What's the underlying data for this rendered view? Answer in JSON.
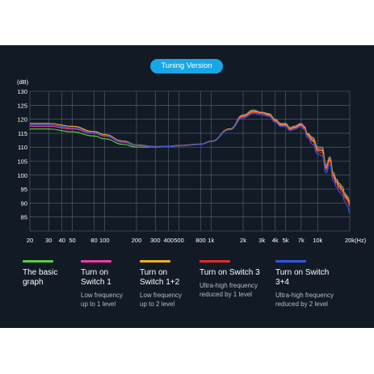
{
  "badge": "Tuning Version",
  "colors": {
    "background": "#121a26",
    "badge": "#1aa6e6",
    "grid": "#5c6675",
    "text": "#ffffff",
    "muted": "#b4bcc8"
  },
  "chart_data": {
    "type": "line",
    "title": "",
    "ylabel": "(dB)",
    "xlabel": "(Hz)",
    "x_scale": "log",
    "xlim": [
      20,
      20000
    ],
    "ylim": [
      80,
      130
    ],
    "grid": true,
    "x_ticks": [
      20,
      30,
      40,
      50,
      80,
      100,
      200,
      300,
      400,
      500,
      800,
      1000,
      2000,
      3000,
      4000,
      5000,
      7000,
      10000,
      20000
    ],
    "x_tick_labels": [
      "20",
      "30",
      "40",
      "50",
      "80",
      "100",
      "200",
      "300",
      "400",
      "500",
      "800",
      "1k",
      "2k",
      "3k",
      "4k",
      "5k",
      "7k",
      "10k",
      "20k"
    ],
    "y_ticks": [
      85,
      90,
      95,
      100,
      105,
      110,
      115,
      120,
      125,
      130
    ],
    "x": [
      20,
      30,
      50,
      80,
      100,
      150,
      200,
      300,
      400,
      500,
      800,
      1000,
      1500,
      2000,
      2500,
      3000,
      3500,
      4000,
      4500,
      5000,
      5500,
      6000,
      7000,
      7500,
      8000,
      9000,
      10000,
      11000,
      12000,
      13000,
      14000,
      15000,
      16000,
      17000,
      18000,
      19000,
      20000
    ],
    "series": [
      {
        "name": "The basic graph",
        "color": "#55d13b",
        "values": [
          116.5,
          116.5,
          115.5,
          114.0,
          113.0,
          111.0,
          110.0,
          110.0,
          110.2,
          110.5,
          111.0,
          112.0,
          116.5,
          121.5,
          123.3,
          122.5,
          122.0,
          120.0,
          118.5,
          118.5,
          117.0,
          117.5,
          118.5,
          117.5,
          115.0,
          113.5,
          110.0,
          110.0,
          103.5,
          106.5,
          101.0,
          98.5,
          97.0,
          96.0,
          93.5,
          92.5,
          90.5
        ]
      },
      {
        "name": "Turn on Switch 1",
        "color": "#f03ca5",
        "values": [
          117.5,
          117.5,
          116.5,
          115.0,
          114.0,
          111.8,
          110.6,
          110.0,
          110.2,
          110.5,
          111.0,
          112.0,
          116.5,
          121.3,
          123.0,
          122.4,
          121.8,
          119.8,
          118.3,
          118.3,
          116.8,
          117.3,
          118.3,
          117.3,
          114.8,
          113.0,
          109.5,
          109.4,
          103.0,
          106.0,
          100.4,
          98.0,
          96.4,
          95.4,
          93.0,
          92.0,
          90.0
        ]
      },
      {
        "name": "Turn on Switch 1+2",
        "color": "#f2b01e",
        "values": [
          118.5,
          118.5,
          117.5,
          115.6,
          114.5,
          112.2,
          110.8,
          110.2,
          110.3,
          110.6,
          111.1,
          112.1,
          116.5,
          121.0,
          122.7,
          122.2,
          121.6,
          119.5,
          118.0,
          118.0,
          116.5,
          117.0,
          118.0,
          117.0,
          114.5,
          112.5,
          109.0,
          108.8,
          102.5,
          105.5,
          99.8,
          97.5,
          95.8,
          94.8,
          92.5,
          91.5,
          89.5
        ]
      },
      {
        "name": "Turn on Switch 3",
        "color": "#e02b2b",
        "values": [
          118.0,
          118.0,
          117.0,
          115.2,
          114.2,
          112.0,
          110.7,
          110.1,
          110.2,
          110.5,
          111.0,
          112.0,
          116.3,
          120.8,
          122.4,
          122.0,
          121.3,
          119.2,
          117.7,
          117.7,
          116.2,
          116.7,
          117.7,
          116.6,
          114.0,
          112.0,
          108.4,
          108.0,
          101.8,
          104.8,
          99.0,
          96.8,
          95.0,
          94.0,
          91.8,
          90.8,
          88.8
        ]
      },
      {
        "name": "Turn on Switch 3+4",
        "color": "#2f56e6",
        "values": [
          118.0,
          118.0,
          117.0,
          115.2,
          114.2,
          112.0,
          110.7,
          110.1,
          110.2,
          110.5,
          111.0,
          112.0,
          116.2,
          120.5,
          122.0,
          121.6,
          121.0,
          118.9,
          117.4,
          117.4,
          115.9,
          116.4,
          117.4,
          116.2,
          113.5,
          111.0,
          107.5,
          107.0,
          100.8,
          103.8,
          98.0,
          95.8,
          94.0,
          92.8,
          90.5,
          89.0,
          86.5
        ]
      }
    ]
  },
  "legend": [
    {
      "label": "The basic\ngraph",
      "desc": ""
    },
    {
      "label": "Turn on\nSwitch 1",
      "desc": "Low frequency\nup to 1 level"
    },
    {
      "label": "Turn on\nSwitch 1+2",
      "desc": "Low frequency\nup to 2 level"
    },
    {
      "label": "Turn on Switch 3",
      "desc": "Ultra-high frequency\nreduced by 1 level"
    },
    {
      "label": "Turn on Switch\n3+4",
      "desc": "Ultra-high frequency\nreduced by 2 level"
    }
  ]
}
